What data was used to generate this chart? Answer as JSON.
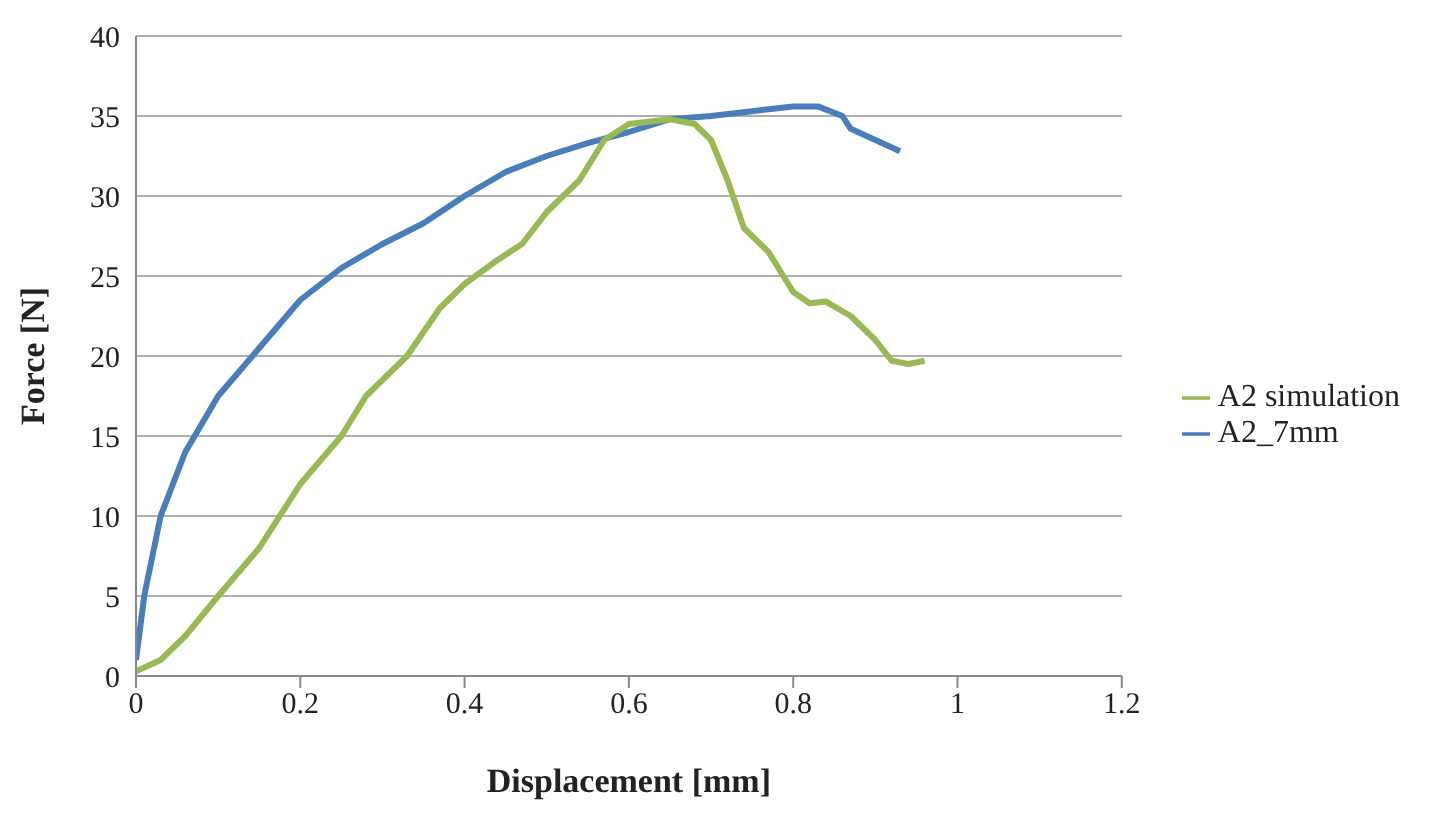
{
  "chart_data": {
    "type": "line",
    "xlabel": "Displacement [mm]",
    "ylabel": "Force [N]",
    "xlim": [
      0,
      1.2
    ],
    "xticks": [
      0,
      0.2,
      0.4,
      0.6,
      0.8,
      1,
      1.2
    ],
    "ylim": [
      0,
      40
    ],
    "yticks": [
      0,
      5,
      10,
      15,
      20,
      25,
      30,
      35,
      40
    ],
    "grid": "y",
    "legend": "right",
    "series": [
      {
        "name": "A2_7mm",
        "color": "#4a7ebb",
        "x": [
          0,
          0.01,
          0.03,
          0.06,
          0.1,
          0.15,
          0.2,
          0.25,
          0.3,
          0.35,
          0.4,
          0.45,
          0.5,
          0.55,
          0.6,
          0.65,
          0.7,
          0.75,
          0.8,
          0.83,
          0.86,
          0.87,
          0.9,
          0.93
        ],
        "values": [
          1,
          5,
          10,
          14,
          17.5,
          20.5,
          23.5,
          25.5,
          27,
          28.3,
          30,
          31.5,
          32.5,
          33.3,
          34,
          34.8,
          35,
          35.3,
          35.6,
          35.6,
          35,
          34.2,
          33.5,
          32.8
        ]
      },
      {
        "name": "A2 simulation",
        "color": "#98b954",
        "x": [
          0,
          0.03,
          0.06,
          0.1,
          0.15,
          0.2,
          0.25,
          0.28,
          0.33,
          0.37,
          0.4,
          0.44,
          0.47,
          0.5,
          0.54,
          0.57,
          0.6,
          0.65,
          0.68,
          0.7,
          0.72,
          0.74,
          0.77,
          0.8,
          0.82,
          0.84,
          0.87,
          0.9,
          0.92,
          0.94,
          0.96
        ],
        "values": [
          0.3,
          1,
          2.5,
          5,
          8,
          12,
          15,
          17.5,
          20,
          23,
          24.5,
          26,
          27,
          29,
          31,
          33.5,
          34.5,
          34.8,
          34.5,
          33.5,
          31,
          28,
          26.5,
          24,
          23.3,
          23.4,
          22.5,
          21,
          19.7,
          19.5,
          19.7
        ]
      }
    ]
  }
}
